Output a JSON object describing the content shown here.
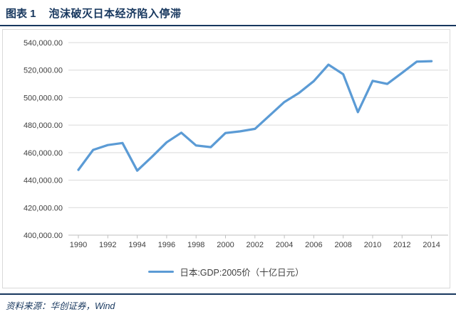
{
  "header": {
    "figure_label": "图表 1",
    "figure_title": "泡沫破灭日本经济陷入停滞"
  },
  "footer": {
    "source": "资料来源：华创证券，Wind"
  },
  "chart_data": {
    "type": "line",
    "title": "泡沫破灭日本经济陷入停滞",
    "series": [
      {
        "name": "日本:GDP:2005价（十亿日元）",
        "x": [
          1990,
          1991,
          1992,
          1993,
          1994,
          1995,
          1996,
          1997,
          1998,
          1999,
          2000,
          2001,
          2002,
          2003,
          2004,
          2005,
          2006,
          2007,
          2008,
          2009,
          2010,
          2011,
          2012,
          2013,
          2014
        ],
        "values": [
          447500,
          462000,
          465500,
          467000,
          446900,
          457000,
          467500,
          474500,
          465200,
          464000,
          474300,
          475500,
          477300,
          487000,
          496800,
          503500,
          512000,
          524000,
          517000,
          489500,
          512200,
          510000,
          518000,
          526200,
          526500
        ]
      }
    ],
    "xlabel": "",
    "ylabel": "",
    "x_tick_labels": [
      "1990",
      "1992",
      "1994",
      "1996",
      "1998",
      "2000",
      "2002",
      "2004",
      "2006",
      "2008",
      "2010",
      "2012",
      "2014"
    ],
    "y_tick_labels": [
      "540,000.00",
      "520,000.00",
      "500,000.00",
      "480,000.00",
      "460,000.00",
      "440,000.00",
      "420,000.00",
      "400,000.00"
    ],
    "ylim": [
      400000,
      540000
    ],
    "y_step": 20000,
    "grid": true,
    "legend_position": "bottom",
    "line_color": "#5B9BD5"
  },
  "colors": {
    "accent_navy": "#17375E",
    "line_blue": "#5B9BD5",
    "gridline": "#D9D9D9",
    "axis": "#BFBFBF",
    "tick_label": "#404040"
  }
}
